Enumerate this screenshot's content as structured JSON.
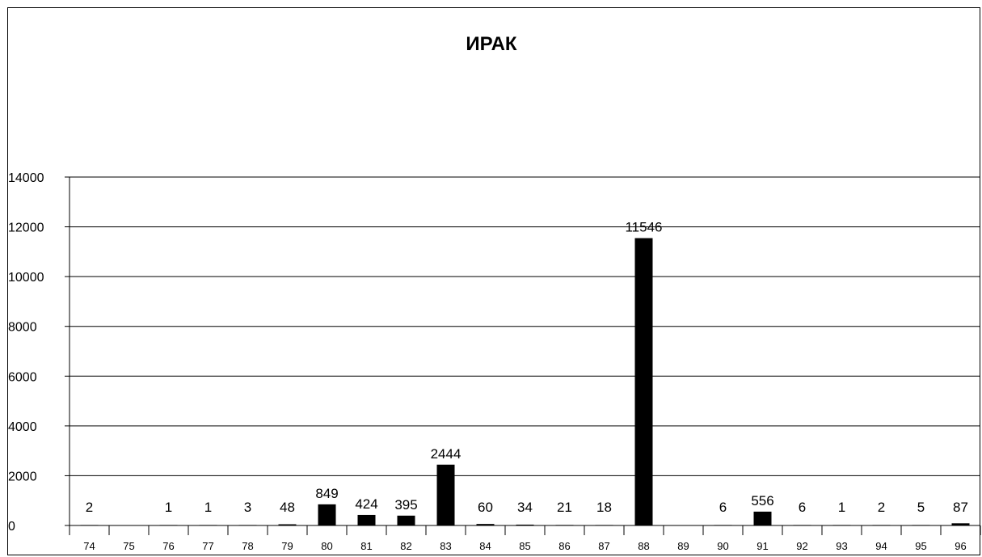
{
  "chart_data": {
    "type": "bar",
    "title": "ИРАК",
    "xlabel": "",
    "ylabel": "",
    "ylim": [
      0,
      14000
    ],
    "yticks": [
      0,
      2000,
      4000,
      6000,
      8000,
      10000,
      12000,
      14000
    ],
    "grid": true,
    "legend": "none",
    "bar_color": "#000000",
    "categories": [
      "74",
      "75",
      "76",
      "77",
      "78",
      "79",
      "80",
      "81",
      "82",
      "83",
      "84",
      "85",
      "86",
      "87",
      "88",
      "89",
      "90",
      "91",
      "92",
      "93",
      "94",
      "95",
      "96"
    ],
    "values": [
      2,
      null,
      1,
      1,
      3,
      48,
      849,
      424,
      395,
      2444,
      60,
      34,
      21,
      18,
      11546,
      null,
      6,
      556,
      6,
      1,
      2,
      5,
      87
    ],
    "data_labels": [
      "2",
      "",
      "1",
      "1",
      "3",
      "48",
      "849",
      "424",
      "395",
      "2444",
      "60",
      "34",
      "21",
      "18",
      "11546",
      "",
      "6",
      "556",
      "6",
      "1",
      "2",
      "5",
      "87"
    ]
  }
}
